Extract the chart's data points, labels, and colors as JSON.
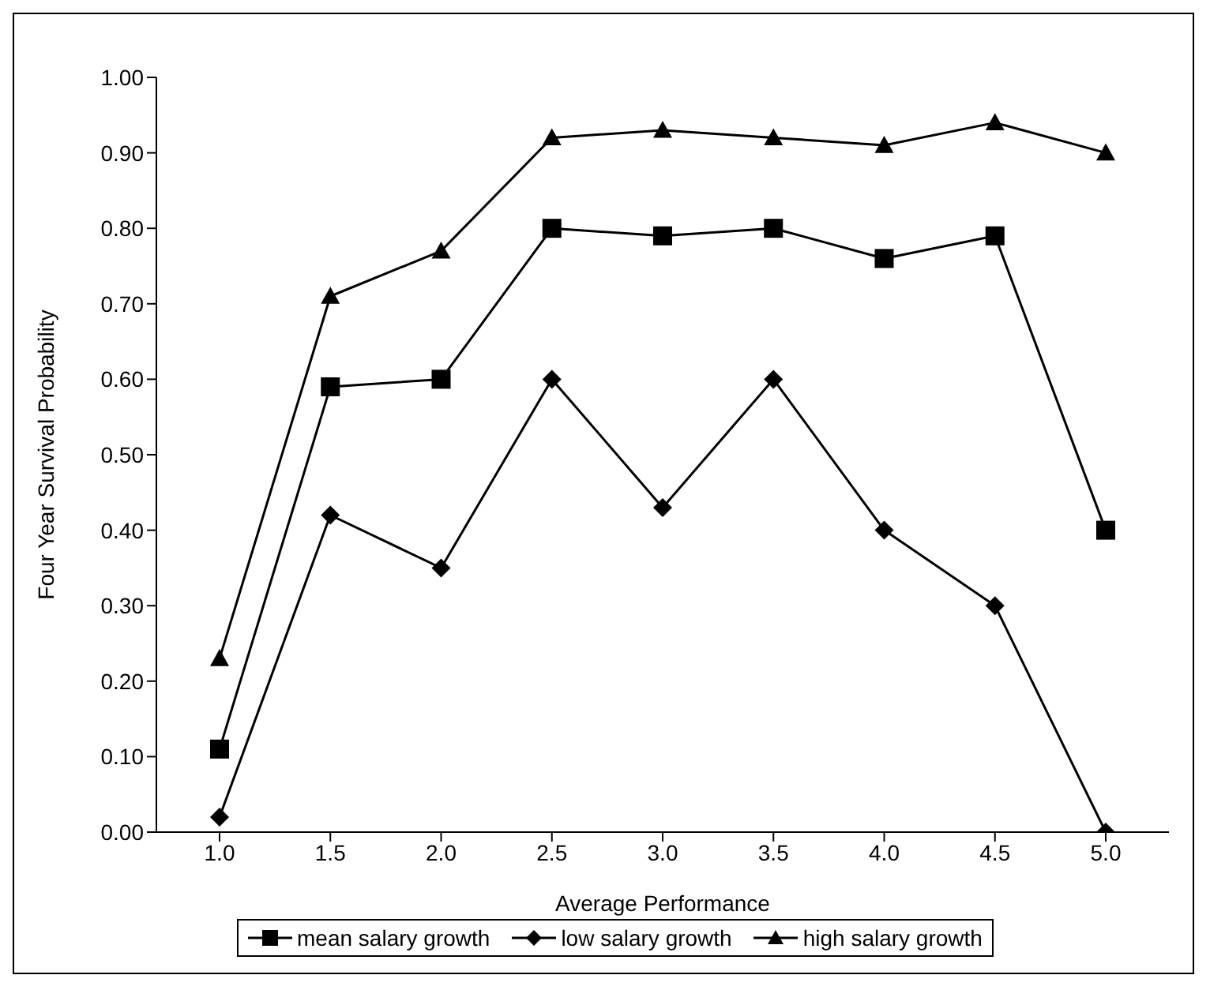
{
  "chart_data": {
    "type": "line",
    "xlabel": "Average Performance",
    "ylabel": "Four Year Survival Probability",
    "categories": [
      "1.0",
      "1.5",
      "2.0",
      "2.5",
      "3.0",
      "3.5",
      "4.0",
      "4.5",
      "5.0"
    ],
    "series": [
      {
        "name": "mean salary growth",
        "color": "#000000",
        "marker": "square",
        "values": [
          0.11,
          0.59,
          0.6,
          0.8,
          0.79,
          0.8,
          0.76,
          0.79,
          0.4
        ]
      },
      {
        "name": "low salary growth",
        "color": "#000000",
        "marker": "diamond",
        "values": [
          0.02,
          0.42,
          0.35,
          0.6,
          0.43,
          0.6,
          0.4,
          0.3,
          0.0
        ]
      },
      {
        "name": "high salary growth",
        "color": "#000000",
        "marker": "triangle",
        "values": [
          0.23,
          0.71,
          0.77,
          0.92,
          0.93,
          0.92,
          0.91,
          0.94,
          0.9
        ]
      }
    ],
    "ylim": [
      0,
      1
    ],
    "yticks": [
      {
        "value": 0,
        "label": "0.00"
      },
      {
        "value": 0.1,
        "label": "0.10"
      },
      {
        "value": 0.2,
        "label": "0.20"
      },
      {
        "value": 0.3,
        "label": "0.30"
      },
      {
        "value": 0.4,
        "label": "0.40"
      },
      {
        "value": 0.5,
        "label": "0.50"
      },
      {
        "value": 0.6,
        "label": "0.60"
      },
      {
        "value": 0.7,
        "label": "0.70"
      },
      {
        "value": 0.8,
        "label": "0.80"
      },
      {
        "value": 0.9,
        "label": "0.90"
      },
      {
        "value": 1,
        "label": "1.00"
      }
    ],
    "grid": false,
    "legend": "bottom",
    "line_style": "solid"
  }
}
